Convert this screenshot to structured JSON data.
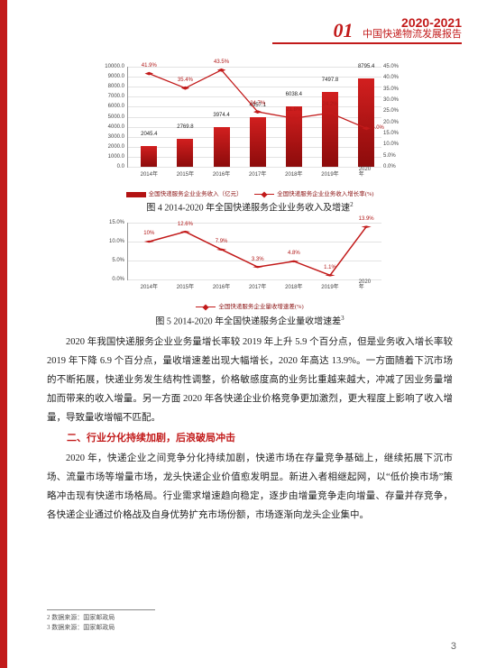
{
  "header": {
    "number": "01",
    "year": "2020-2021",
    "subtitle": "中国快递物流发展报告"
  },
  "chart1": {
    "type": "bar+line",
    "years": [
      "2014年",
      "2015年",
      "2016年",
      "2017年",
      "2018年",
      "2019年",
      "2020年"
    ],
    "bar_values": [
      2045.4,
      2769.8,
      3974.4,
      4957.1,
      6038.4,
      7497.8,
      8795.4
    ],
    "line_values": [
      41.9,
      35.4,
      43.5,
      24.7,
      21.8,
      24.2,
      17.3
    ],
    "extra_right_label": "15.0%",
    "yl_max": 10000,
    "yl_step": 1000,
    "yr_max": 45,
    "yr_step": 5,
    "bar_color": "#b31313",
    "line_color": "#c21a1a",
    "legend_bar": "全国快递服务企业业务收入（亿元）",
    "legend_line": "全国快递服务企业业务收入增长率(%)",
    "caption": "图 4 2014-2020 年全国快递服务企业业务收入及增速",
    "caption_sup": "2",
    "grid_color": "#e3e3e3"
  },
  "chart2": {
    "type": "line",
    "years": [
      "2014年",
      "2015年",
      "2016年",
      "2017年",
      "2018年",
      "2019年",
      "2020年"
    ],
    "values": [
      10.0,
      12.6,
      7.9,
      3.3,
      4.8,
      1.1,
      13.9
    ],
    "y_max": 15,
    "y_step": 5,
    "line_color": "#c21a1a",
    "legend": "全国快递服务企业量收增速差(%)",
    "caption": "图 5 2014-2020 年全国快递服务企业量收增速差",
    "caption_sup": "3",
    "grid_color": "#e3e3e3"
  },
  "para1": "2020 年我国快递服务企业业务量增长率较 2019 年上升 5.9 个百分点，但是业务收入增长率较 2019 年下降 6.9 个百分点，量收增速差出现大幅增长，2020 年高达 13.9%。一方面随着下沉市场的不断拓展，快递业务发生结构性调整，价格敏感度高的业务比重越来越大，冲减了因业务量增加而带来的收入增量。另一方面 2020 年各快递企业价格竞争更加激烈，更大程度上影响了收入增量，导致量收增幅不匹配。",
  "sectionTitle": "二、行业分化持续加剧，后浪破局冲击",
  "para2": "2020 年，快递企业之间竞争分化持续加剧，快递市场在存量竞争基础上，继续拓展下沉市场、流量市场等增量市场，龙头快递企业价值愈发明显。新进入者相继起网，以“低价换市场”策略冲击现有快递市场格局。行业需求增速趋向稳定，逐步由增量竞争走向增量、存量并存竞争，各快递企业通过价格战及自身优势扩充市场份额，市场逐渐向龙头企业集中。",
  "footnotes": {
    "f2": "2 数据来源：国家邮政局",
    "f3": "3 数据来源：国家邮政局"
  },
  "pageNumber": "3"
}
